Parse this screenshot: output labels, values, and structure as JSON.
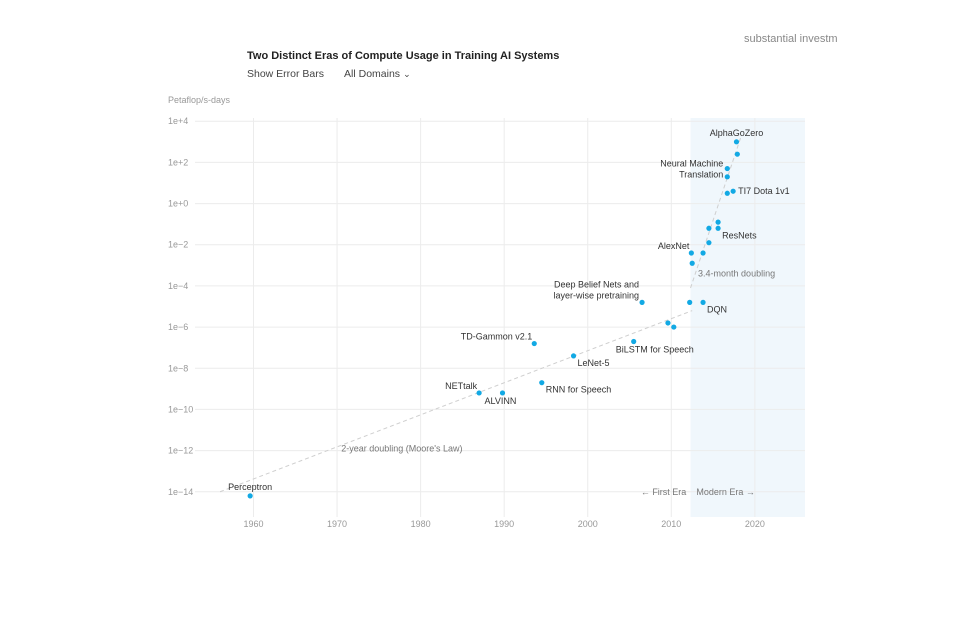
{
  "header": {
    "corner_text": "substantial investme",
    "title": "Two Distinct Eras of Compute Usage in Training AI Systems",
    "show_error_bars": "Show Error Bars",
    "domain_filter": "All Domains"
  },
  "chart_data": {
    "type": "scatter",
    "title": "Two Distinct Eras of Compute Usage in Training AI Systems",
    "ylabel": "Petaflop/s-days",
    "xlabel": "",
    "y_scale": "log10",
    "xlim": [
      1953,
      2026
    ],
    "ylim_log10": [
      -14.4,
      4.4
    ],
    "x_ticks": [
      1960,
      1970,
      1980,
      1990,
      2000,
      2010,
      2020
    ],
    "y_ticks": [
      {
        "exp": 4,
        "label": "1e+4"
      },
      {
        "exp": 2,
        "label": "1e+2"
      },
      {
        "exp": 0,
        "label": "1e+0"
      },
      {
        "exp": -2,
        "label": "1e−2"
      },
      {
        "exp": -4,
        "label": "1e−4"
      },
      {
        "exp": -6,
        "label": "1e−6"
      },
      {
        "exp": -8,
        "label": "1e−8"
      },
      {
        "exp": -10,
        "label": "1e−10"
      },
      {
        "exp": -12,
        "label": "1e−12"
      },
      {
        "exp": -14,
        "label": "1e−14"
      }
    ],
    "modern_era_start": 2012.3,
    "points": [
      {
        "x": 1959.6,
        "y_log10": -14.2,
        "label": "Perceptron",
        "label_pos": "above"
      },
      {
        "x": 1987.0,
        "y_log10": -9.2,
        "label": "NETtalk",
        "label_pos": "left-above"
      },
      {
        "x": 1989.8,
        "y_log10": -9.2,
        "label": "ALVINN",
        "label_pos": "below"
      },
      {
        "x": 1993.6,
        "y_log10": -6.8,
        "label": "TD-Gammon v2.1",
        "label_pos": "left-above"
      },
      {
        "x": 1994.5,
        "y_log10": -8.7,
        "label": "RNN for Speech",
        "label_pos": "right-below"
      },
      {
        "x": 1998.3,
        "y_log10": -7.4,
        "label": "LeNet-5",
        "label_pos": "right-below"
      },
      {
        "x": 2005.5,
        "y_log10": -6.7,
        "label": "BiLSTM for Speech",
        "label_pos": "below"
      },
      {
        "x": 2006.5,
        "y_log10": -4.8,
        "label": "Deep Belief Nets and layer-wise pretraining",
        "label_pos": "left-above-2line"
      },
      {
        "x": 2009.6,
        "y_log10": -5.8,
        "label": "",
        "label_pos": "none"
      },
      {
        "x": 2010.3,
        "y_log10": -6.0,
        "label": "",
        "label_pos": "none"
      },
      {
        "x": 2012.2,
        "y_log10": -4.8,
        "label": "",
        "label_pos": "none"
      },
      {
        "x": 2012.4,
        "y_log10": -2.4,
        "label": "AlexNet",
        "label_pos": "left-above"
      },
      {
        "x": 2012.5,
        "y_log10": -2.9,
        "label": "",
        "label_pos": "none"
      },
      {
        "x": 2013.8,
        "y_log10": -4.8,
        "label": "DQN",
        "label_pos": "right-below"
      },
      {
        "x": 2013.8,
        "y_log10": -2.4,
        "label": "",
        "label_pos": "none"
      },
      {
        "x": 2014.5,
        "y_log10": -1.9,
        "label": "",
        "label_pos": "none"
      },
      {
        "x": 2014.5,
        "y_log10": -1.2,
        "label": "",
        "label_pos": "none"
      },
      {
        "x": 2015.6,
        "y_log10": -1.2,
        "label": "ResNets",
        "label_pos": "right-below"
      },
      {
        "x": 2015.6,
        "y_log10": -0.9,
        "label": "",
        "label_pos": "none"
      },
      {
        "x": 2016.7,
        "y_log10": 1.7,
        "label": "Neural Machine Translation",
        "label_pos": "left-2line"
      },
      {
        "x": 2016.7,
        "y_log10": 1.3,
        "label": "",
        "label_pos": "none"
      },
      {
        "x": 2016.7,
        "y_log10": 0.5,
        "label": "",
        "label_pos": "none"
      },
      {
        "x": 2017.4,
        "y_log10": 0.6,
        "label": "TI7 Dota 1v1",
        "label_pos": "right"
      },
      {
        "x": 2017.8,
        "y_log10": 3.0,
        "label": "AlphaGoZero",
        "label_pos": "above"
      },
      {
        "x": 2017.9,
        "y_log10": 2.4,
        "label": "",
        "label_pos": "none"
      }
    ],
    "trend_lines": [
      {
        "name": "2-year doubling (Moore's Law)",
        "from": [
          1956,
          -14.0
        ],
        "to": [
          2012.5,
          -5.2
        ],
        "label_at": [
          1970.5,
          -11.9
        ]
      },
      {
        "name": "3.4-month doubling",
        "from": [
          2012.3,
          -4.1
        ],
        "to": [
          2018.3,
          3.2
        ],
        "label_at": [
          2013.2,
          -3.4
        ]
      }
    ],
    "era_labels": [
      {
        "name": "← First Era",
        "x": 2011.8,
        "anchor": "end"
      },
      {
        "name": "Modern Era →",
        "x": 2013.0,
        "anchor": "start"
      }
    ],
    "colors": {
      "point": "#12a9e4",
      "modern_era_fill": "#f0f7fc",
      "grid": "#ececec",
      "trend": "#cfcfcf",
      "tick_text": "#999999",
      "label_text": "#333333"
    }
  }
}
